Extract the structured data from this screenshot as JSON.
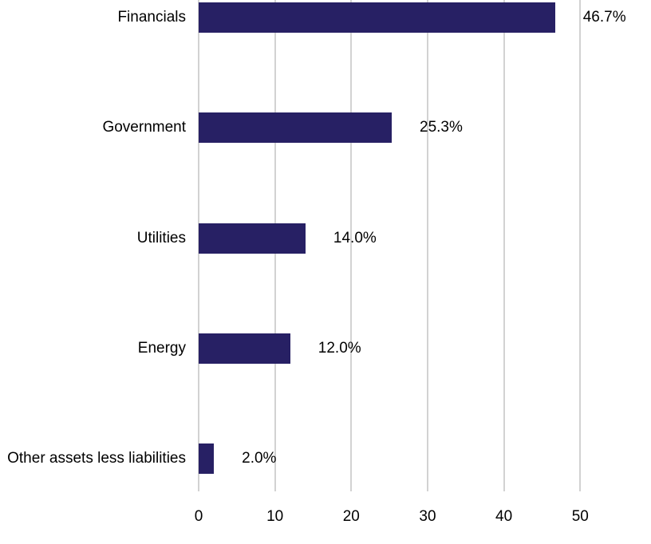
{
  "chart_data": {
    "type": "bar",
    "orientation": "horizontal",
    "title": "",
    "xlabel": "",
    "ylabel": "",
    "categories": [
      "Financials",
      "Government",
      "Utilities",
      "Energy",
      "Other assets less liabilities"
    ],
    "values": [
      46.7,
      25.3,
      14.0,
      12.0,
      2.0
    ],
    "value_labels": [
      "46.7%",
      "25.3%",
      "14.0%",
      "12.0%",
      "2.0%"
    ],
    "x_ticks": [
      0,
      10,
      20,
      30,
      40,
      50
    ],
    "xlim": [
      0,
      50
    ],
    "grid": "vertical-gridlines-only",
    "legend": "none",
    "colors": {
      "bar": "#272064",
      "gridline": "#d2d2d2",
      "text": "#000000",
      "background": "#ffffff"
    }
  }
}
